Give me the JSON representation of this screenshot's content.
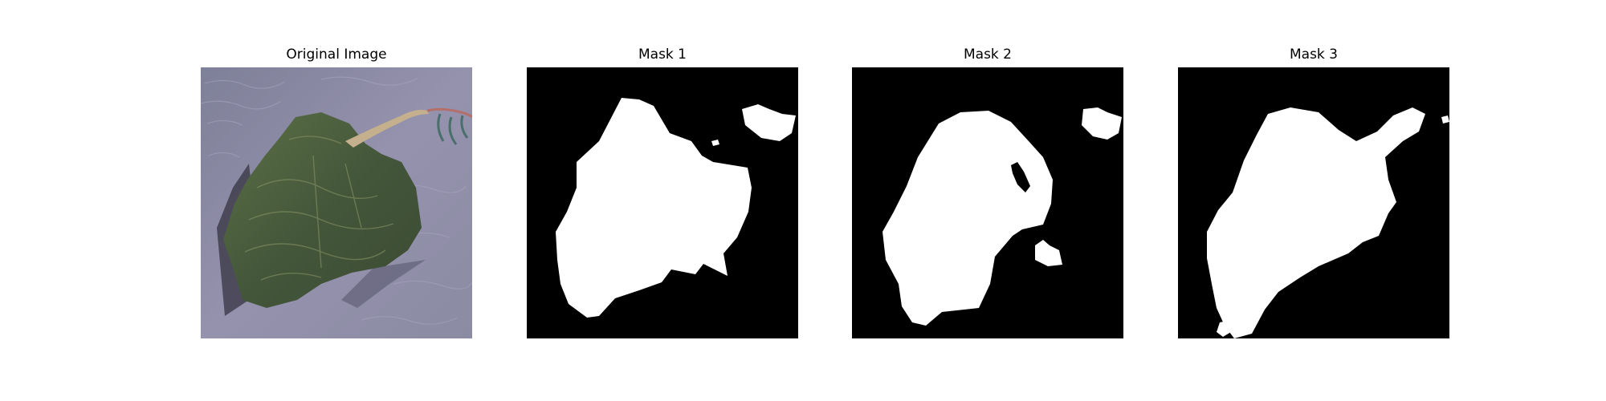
{
  "figure": {
    "panels": [
      {
        "title": "Original Image"
      },
      {
        "title": "Mask 1"
      },
      {
        "title": "Mask 2"
      },
      {
        "title": "Mask 3"
      }
    ]
  },
  "colors": {
    "background": "#ffffff",
    "mask_background": "#000000",
    "mask_foreground": "#ffffff",
    "water": "#8e8aa4",
    "land": "#44573a",
    "land_highlight": "#6f7d56"
  }
}
